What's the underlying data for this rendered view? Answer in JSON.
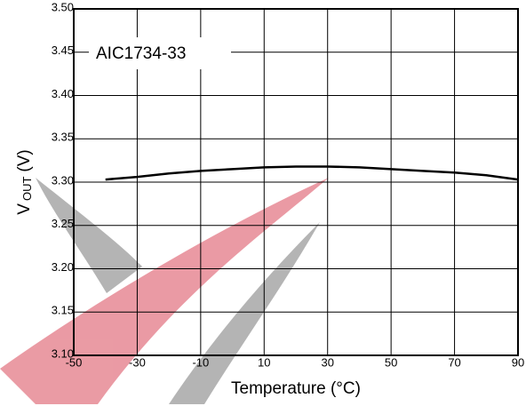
{
  "chart_data": {
    "type": "line",
    "annotation": "AIC1734-33",
    "x_label": "Temperature (°C)",
    "y_label": {
      "main": "V",
      "sub": "OUT",
      "unit": "(V)"
    },
    "x": [
      -40,
      -30,
      -20,
      -10,
      0,
      10,
      20,
      30,
      40,
      50,
      60,
      70,
      80,
      90
    ],
    "series": [
      {
        "color": "#000000",
        "values": [
          3.303,
          3.306,
          3.31,
          3.313,
          3.315,
          3.317,
          3.318,
          3.318,
          3.317,
          3.315,
          3.313,
          3.311,
          3.308,
          3.303
        ]
      }
    ],
    "xlim": [
      -50,
      90
    ],
    "xticks": [
      -50,
      -30,
      -10,
      10,
      30,
      50,
      70,
      90
    ],
    "ylim": [
      3.1,
      3.5
    ],
    "yticks": [
      {
        "value": 3.1,
        "label": "3.10"
      },
      3.15,
      {
        "value": 3.2,
        "label": "3.20"
      },
      3.25,
      {
        "value": 3.3,
        "label": "3.30"
      },
      3.35,
      {
        "value": 3.4,
        "label": "3.40"
      },
      3.45,
      {
        "value": 3.5,
        "label": "3.50"
      }
    ],
    "grid": true
  }
}
